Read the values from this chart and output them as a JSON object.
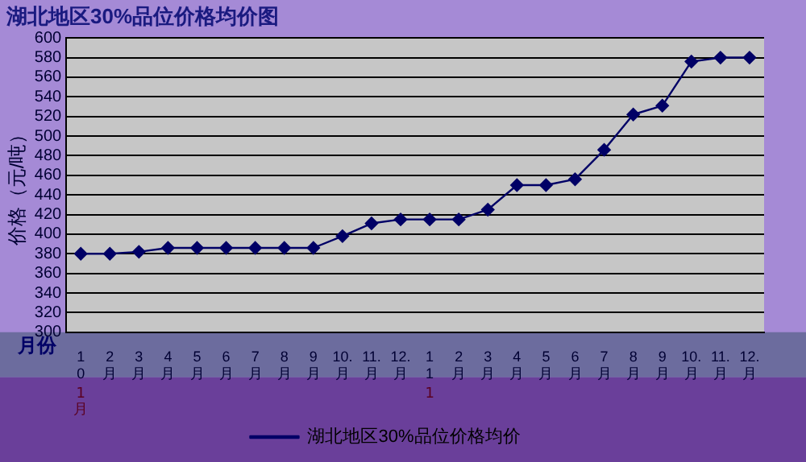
{
  "chart_data": {
    "type": "line",
    "title": "湖北地区30%品位价格均价图",
    "xlabel": "月份",
    "ylabel": "价格（元/吨）",
    "categories": [
      "10",
      "2月",
      "3月",
      "4月",
      "5月",
      "6月",
      "7月",
      "8月",
      "9月",
      "10.月",
      "11.月",
      "12.月",
      "11",
      "2月",
      "3月",
      "4月",
      "5月",
      "6月",
      "7月",
      "8月",
      "9月",
      "10.月",
      "11.月",
      "12.月"
    ],
    "series": [
      {
        "name": "湖北地区30%品位价格均价",
        "color": "#000066",
        "values": [
          380,
          380,
          382,
          386,
          386,
          386,
          386,
          386,
          386,
          398,
          411,
          415,
          415,
          415,
          425,
          450,
          450,
          456,
          486,
          522,
          531,
          576,
          580,
          580
        ]
      }
    ],
    "ylim": [
      300,
      600
    ],
    "yticks": [
      300,
      320,
      340,
      360,
      380,
      400,
      420,
      440,
      460,
      480,
      500,
      520,
      540,
      560,
      580,
      600
    ],
    "grid": "y",
    "legend": "bottom",
    "marker": "diamond",
    "line_style": "solid",
    "annotations": [
      "1月",
      "1"
    ]
  }
}
